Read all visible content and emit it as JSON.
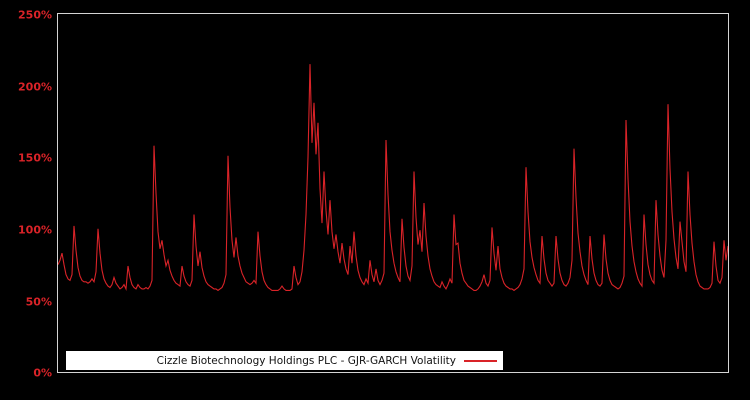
{
  "window": {
    "background": "#000000"
  },
  "chart_data": {
    "type": "line",
    "title": "",
    "xlabel": "",
    "ylabel": "",
    "ylim": [
      0,
      250
    ],
    "y_unit": "%",
    "y_ticks": [
      "250%",
      "200%",
      "150%",
      "100%",
      "50%",
      "0%"
    ],
    "y_tick_values": [
      250,
      200,
      150,
      100,
      50,
      0
    ],
    "x_tick_labels": [],
    "grid": false,
    "background": "#000000",
    "frame_color": "#d4d4d4",
    "line_color": "#d92328",
    "tick_label_color": "#d92328",
    "legend": {
      "label": "Cizzle Biotechnology Holdings PLC - GJR-GARCH Volatility",
      "position": "bottom-inside",
      "background": "#ffffff",
      "text_color": "#111111"
    },
    "series": [
      {
        "name": "Cizzle Biotechnology Holdings PLC - GJR-GARCH Volatility",
        "unit": "percent",
        "values": [
          75,
          78,
          83,
          75,
          68,
          65,
          64,
          68,
          102,
          85,
          73,
          67,
          64,
          63,
          63,
          62,
          63,
          65,
          63,
          70,
          100,
          83,
          71,
          65,
          62,
          60,
          59,
          61,
          66,
          62,
          60,
          58,
          59,
          61,
          58,
          74,
          66,
          61,
          59,
          58,
          61,
          59,
          58,
          58,
          59,
          58,
          60,
          64,
          158,
          125,
          98,
          86,
          92,
          82,
          74,
          78,
          71,
          67,
          64,
          62,
          61,
          60,
          74,
          67,
          63,
          61,
          60,
          64,
          110,
          88,
          74,
          84,
          73,
          67,
          63,
          61,
          60,
          59,
          58,
          58,
          57,
          58,
          59,
          62,
          68,
          151,
          115,
          92,
          80,
          94,
          81,
          74,
          69,
          66,
          63,
          62,
          61,
          62,
          64,
          62,
          98,
          81,
          70,
          64,
          61,
          59,
          58,
          57,
          57,
          57,
          57,
          58,
          60,
          58,
          57,
          57,
          57,
          58,
          74,
          66,
          61,
          63,
          70,
          85,
          110,
          150,
          215,
          160,
          188,
          152,
          174,
          128,
          104,
          140,
          113,
          96,
          120,
          98,
          86,
          96,
          84,
          76,
          90,
          79,
          72,
          68,
          88,
          76,
          98,
          81,
          71,
          66,
          63,
          61,
          65,
          62,
          78,
          68,
          63,
          72,
          64,
          61,
          64,
          69,
          162,
          124,
          98,
          85,
          76,
          70,
          66,
          63,
          107,
          87,
          74,
          67,
          64,
          74,
          140,
          108,
          89,
          99,
          84,
          118,
          95,
          81,
          72,
          67,
          63,
          61,
          60,
          59,
          63,
          60,
          58,
          61,
          65,
          62,
          110,
          89,
          90,
          76,
          69,
          64,
          62,
          60,
          59,
          58,
          57,
          57,
          58,
          60,
          63,
          68,
          62,
          60,
          64,
          101,
          83,
          71,
          88,
          72,
          66,
          62,
          60,
          59,
          58,
          58,
          57,
          58,
          59,
          61,
          65,
          72,
          143,
          112,
          91,
          80,
          73,
          68,
          64,
          62,
          95,
          79,
          69,
          64,
          62,
          60,
          62,
          95,
          79,
          69,
          64,
          61,
          60,
          62,
          66,
          78,
          156,
          122,
          97,
          84,
          74,
          68,
          64,
          61,
          95,
          79,
          69,
          64,
          61,
          60,
          62,
          96,
          79,
          69,
          64,
          61,
          60,
          59,
          58,
          59,
          62,
          67,
          176,
          135,
          105,
          88,
          77,
          70,
          65,
          62,
          60,
          110,
          89,
          75,
          68,
          64,
          62,
          120,
          96,
          81,
          71,
          66,
          92,
          187,
          142,
          112,
          93,
          80,
          72,
          105,
          91,
          77,
          70,
          140,
          110,
          90,
          77,
          68,
          63,
          60,
          59,
          58,
          58,
          58,
          59,
          62,
          91,
          74,
          64,
          62,
          66,
          92,
          78,
          88
        ]
      }
    ]
  }
}
